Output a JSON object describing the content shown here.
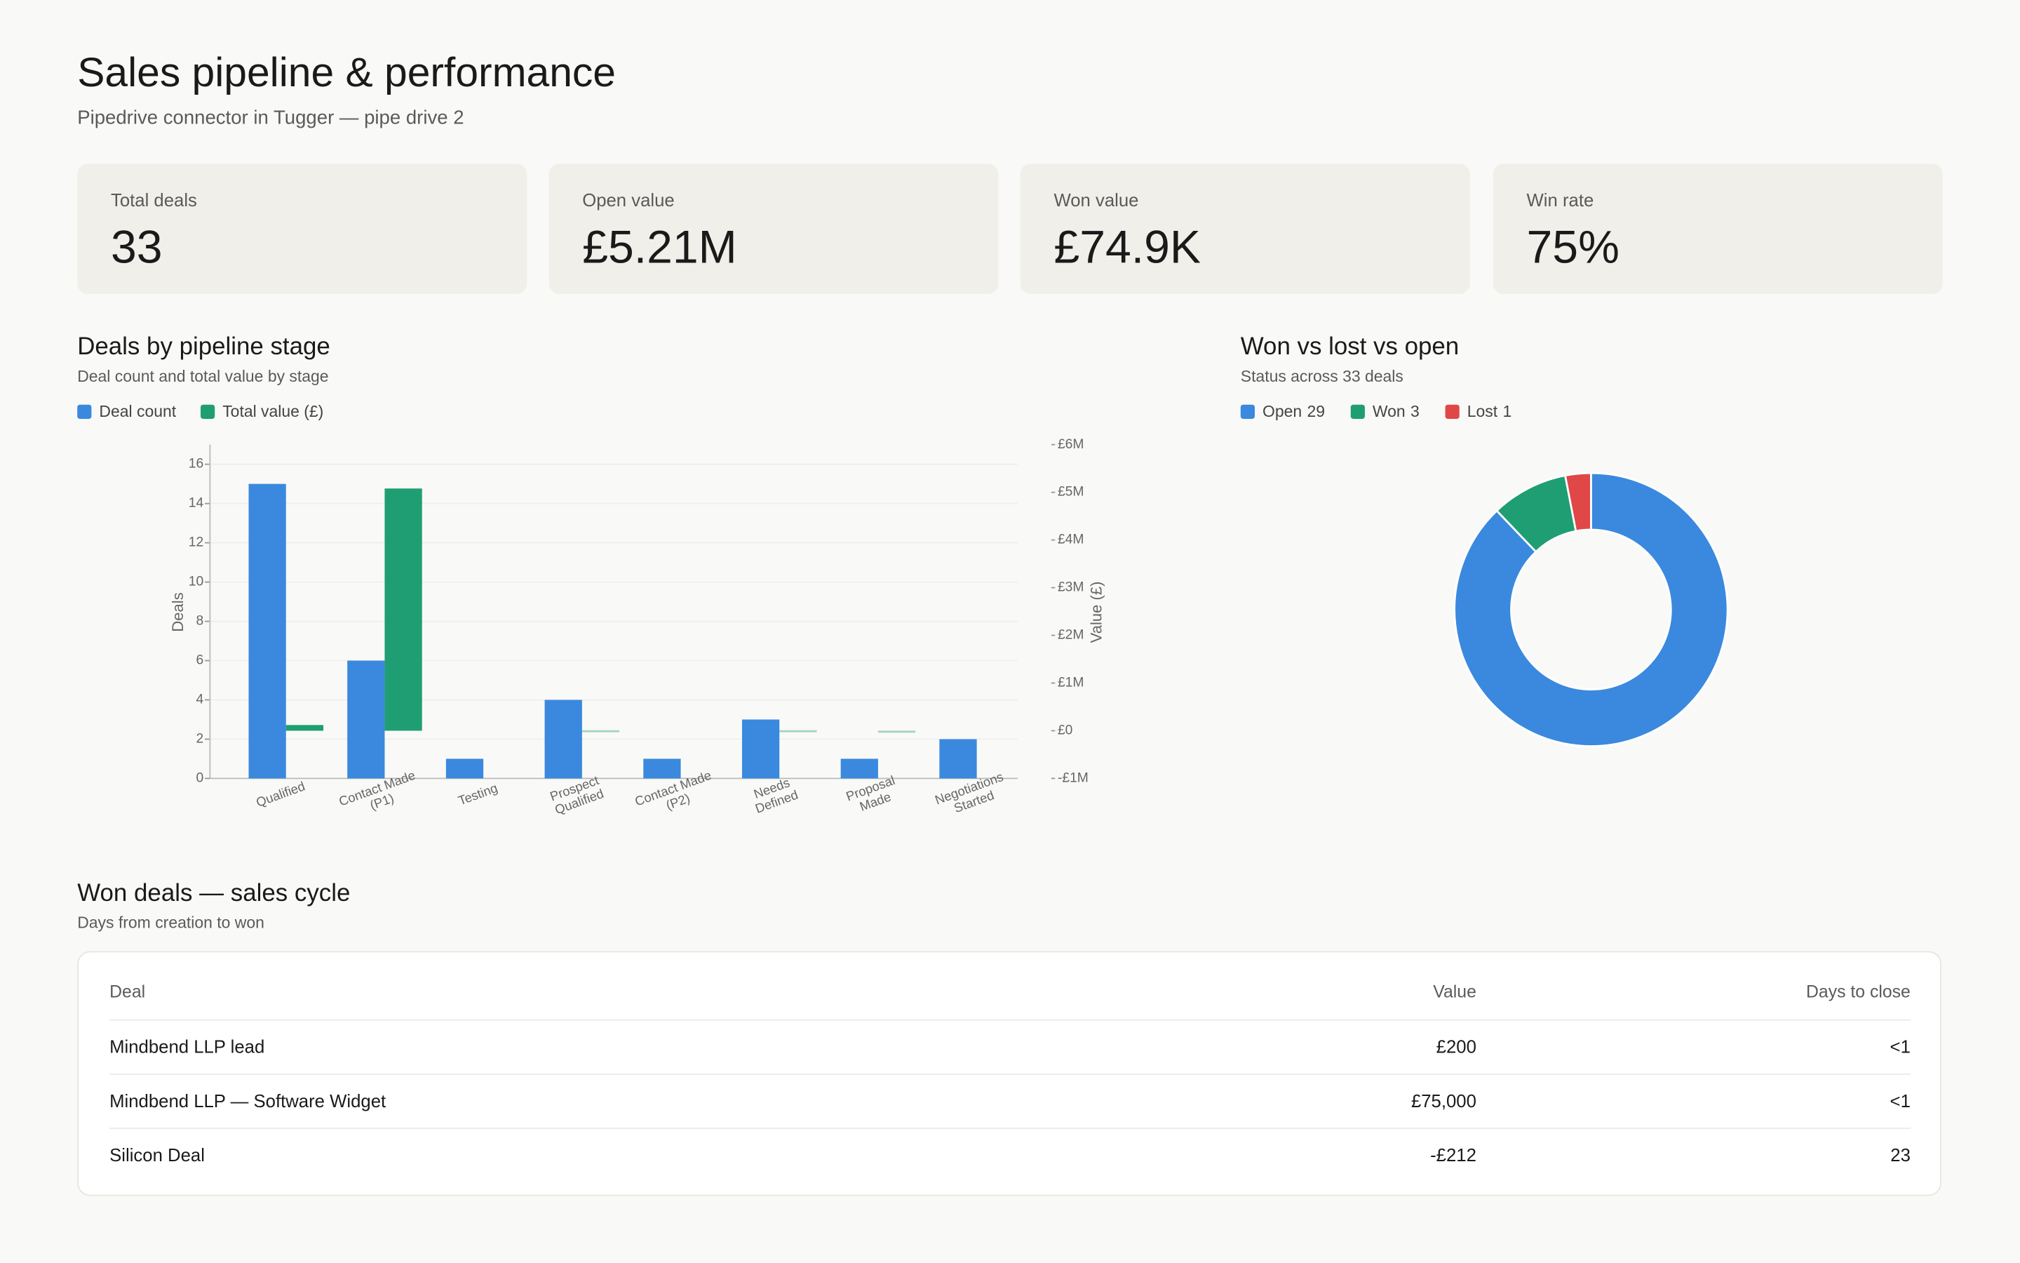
{
  "header": {
    "title": "Sales pipeline & performance",
    "subtitle": "Pipedrive connector in Tugger — pipe drive 2"
  },
  "kpis": [
    {
      "label": "Total deals",
      "value": "33"
    },
    {
      "label": "Open value",
      "value": "£5.21M"
    },
    {
      "label": "Won value",
      "value": "£74.9K"
    },
    {
      "label": "Win rate",
      "value": "75%"
    }
  ],
  "chart_data": [
    {
      "type": "bar",
      "title": "Deals by pipeline stage",
      "subtitle": "Deal count and total value by stage",
      "categories": [
        "Qualified",
        "Contact Made (P1)",
        "Testing",
        "Prospect Qualified",
        "Contact Made (P2)",
        "Needs Defined",
        "Proposal Made",
        "Negotiations Started"
      ],
      "series": [
        {
          "name": "Deal count",
          "color": "#3a89de",
          "values": [
            15,
            6,
            1,
            4,
            1,
            3,
            1,
            2
          ]
        },
        {
          "name": "Total value (£)",
          "color": "#1f9e74",
          "axis": "y2",
          "values": [
            120000,
            5080000,
            null,
            10000,
            null,
            10000,
            1000,
            null
          ]
        }
      ],
      "ylabel": "Deals",
      "y2label": "Value (£)",
      "ylim": [
        0,
        17
      ],
      "yticks": [
        0,
        2,
        4,
        6,
        8,
        10,
        12,
        14,
        16
      ],
      "y2lim": [
        -1000000,
        6000000
      ],
      "y2ticks": [
        {
          "value": -1000000,
          "label": "-£1M"
        },
        {
          "value": 0,
          "label": "£0"
        },
        {
          "value": 1000000,
          "label": "£1M"
        },
        {
          "value": 2000000,
          "label": "£2M"
        },
        {
          "value": 3000000,
          "label": "£3M"
        },
        {
          "value": 4000000,
          "label": "£4M"
        },
        {
          "value": 5000000,
          "label": "£5M"
        },
        {
          "value": 6000000,
          "label": "£6M"
        }
      ],
      "grid": true,
      "legend": "top-left"
    },
    {
      "type": "donut",
      "title": "Won vs lost vs open",
      "subtitle": "Status across 33 deals",
      "categories": [
        "Open",
        "Won",
        "Lost"
      ],
      "values": [
        29,
        3,
        1
      ],
      "colors": [
        "#3a89de",
        "#1f9e74",
        "#e04848"
      ],
      "legend": "top-left"
    }
  ],
  "table": {
    "title": "Won deals — sales cycle",
    "subtitle": "Days from creation to won",
    "columns": [
      "Deal",
      "Value",
      "Days to close"
    ],
    "rows": [
      [
        "Mindbend LLP lead",
        "£200",
        "<1"
      ],
      [
        "Mindbend LLP — Software Widget",
        "£75,000",
        "<1"
      ],
      [
        "Silicon Deal",
        "-£212",
        "23"
      ]
    ]
  }
}
